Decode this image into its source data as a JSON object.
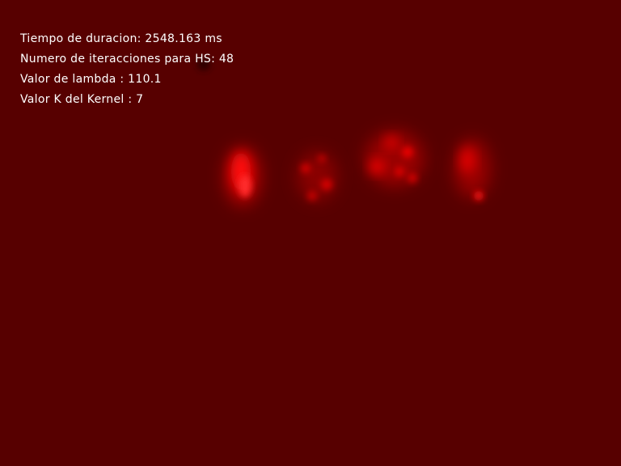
{
  "overlay": {
    "lines": [
      "Tiempo de duracion: 2548.163 ms",
      "Numero de iteracciones para HS: 48",
      "Valor de lambda : 110.1",
      "Valor K del Kernel : 7"
    ]
  },
  "colors": {
    "background": "#570000",
    "text": "#ffffff",
    "highlight": "#ff0000"
  }
}
